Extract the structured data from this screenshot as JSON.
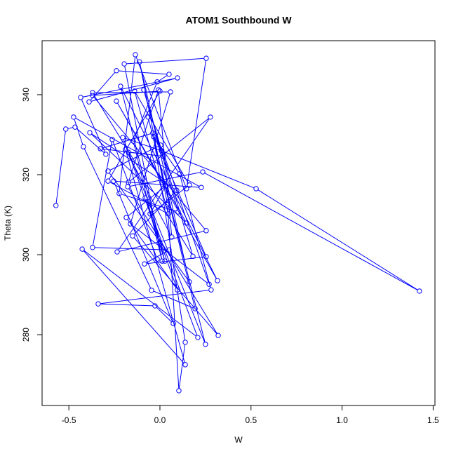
{
  "chart_data": {
    "type": "line",
    "title": "ATOM1 Southbound W",
    "x_label": "W",
    "y_label": "Theta (K)",
    "color": "#0000ff",
    "marker": "open-circle",
    "xlim": [
      -0.647,
      1.51
    ],
    "ylim": [
      262.3,
      353.5
    ],
    "xticks": [
      -0.5,
      {
        "value": 0,
        "label": "0.0"
      },
      0.5,
      {
        "value": 1,
        "label": "1.0"
      },
      1.5
    ],
    "yticks": [
      280,
      300,
      320,
      340
    ],
    "x": [
      -0.571,
      -0.517,
      -0.466,
      -0.297,
      -0.435,
      0.096,
      -0.389,
      -0.239,
      0.05,
      -0.015,
      -0.146,
      0.012,
      -0.196,
      0.254,
      0.146,
      -0.135,
      -0.224,
      0.1,
      -0.089,
      0.181,
      -0.37,
      0.058,
      -0.162,
      0.27,
      0.004,
      -0.285,
      0.162,
      -0.112,
      0.042,
      0.104,
      0.139,
      -0.035,
      0.108,
      0.281,
      -0.339,
      -0.027,
      0.073,
      -0.254,
      0.227,
      -0.474,
      -0.42,
      -0.046,
      0.193,
      -0.065,
      0.25,
      -0.204,
      0.008,
      0.528,
      1.425,
      0.235,
      -0.177,
      0.32,
      -0.15,
      0.092,
      -0.385,
      0.146,
      -0.239,
      0.316,
      -0.216,
      0.027,
      -0.081,
      0.208,
      -0.427,
      0.139,
      -0.189,
      0.065,
      -0.008,
      -0.173,
      0.277,
      -0.235,
      0.254,
      -0.37,
      0.0,
      -0.285,
      0.046,
      -0.139,
      0.162,
      -0.054,
      0.031,
      -0.185,
      0.096,
      -0.173,
      0.019,
      -0.327,
      -0.039,
      0.254,
      -0.085,
      0.05,
      -0.37,
      -0.262,
      -0.015
    ],
    "values": [
      312.3,
      331.4,
      331.9,
      325.1,
      339.3,
      344.2,
      338.2,
      346.0,
      345.1,
      343.2,
      328.4,
      298.4,
      347.7,
      349.1,
      316.5,
      350.0,
      315.3,
      310.7,
      341.2,
      299.6,
      340.5,
      340.7,
      307.7,
      292.6,
      327.4,
      320.9,
      293.2,
      348.2,
      312.5,
      266.0,
      278.1,
      329.5,
      320.2,
      291.2,
      287.7,
      287.2,
      282.8,
      318.4,
      316.8,
      334.4,
      327.0,
      291.1,
      286.5,
      334.4,
      277.6,
      329.3,
      326.0,
      316.5,
      290.9,
      320.7,
      317.0,
      279.8,
      304.7,
      316.1,
      330.5,
      307.9,
      338.4,
      293.5,
      342.1,
      298.4,
      314.2,
      279.3,
      301.4,
      272.5,
      326.3,
      304.4,
      341.2,
      318.1,
      334.4,
      300.7,
      306.0,
      339.8,
      340.9,
      318.4,
      310.2,
      340.9,
      317.4,
      310.2,
      317.2,
      309.3,
      291.2,
      325.6,
      324.6,
      326.5,
      330.4,
      299.5,
      297.7,
      301.2,
      301.8,
      328.8,
      298.9
    ]
  }
}
